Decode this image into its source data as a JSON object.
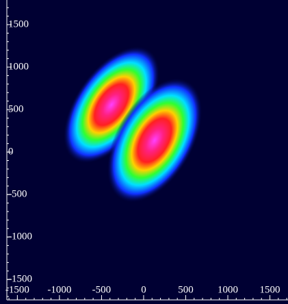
{
  "chart_data": {
    "type": "image",
    "xlim": [
      -1625,
      1715
    ],
    "ylim": [
      -1740,
      1790
    ],
    "xticks": [
      -1500,
      -1000,
      -500,
      0,
      500,
      1000,
      1500
    ],
    "yticks": [
      -1500,
      -1000,
      -500,
      0,
      500,
      1000,
      1500
    ]
  }
}
